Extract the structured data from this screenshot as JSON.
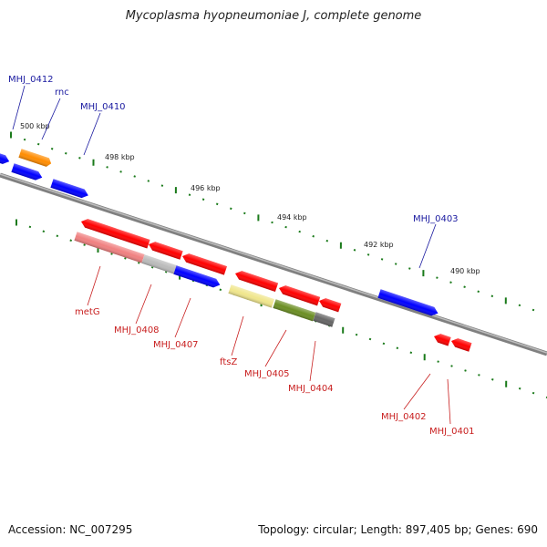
{
  "title": "Mycoplasma hyopneumoniae J, complete genome",
  "footer": {
    "accession": "Accession: NC_007295",
    "summary": "Topology: circular; Length: 897,405 bp; Genes: 690"
  },
  "colors": {
    "backbone": "#808080",
    "tick": "#1a7a1a",
    "label_forward": "#1a1aa0",
    "label_reverse": "#c81e1e",
    "red": "#ff0000",
    "blue": "#0000ff",
    "orange": "#ff8c00",
    "salmon": "#f08080",
    "lightgray": "#bbbbbb",
    "khaki": "#f0e68c",
    "olive": "#6b8e23",
    "darkgray": "#666666"
  },
  "scale_labels": [
    "500 kbp",
    "498 kbp",
    "496 kbp",
    "494 kbp",
    "492 kbp",
    "490 kbp"
  ],
  "features": [
    {
      "id": "f1",
      "color": "blue"
    },
    {
      "id": "MHJ_0412",
      "label": "MHJ_0412",
      "color": "blue",
      "strand": "forward"
    },
    {
      "id": "rnc",
      "label": "rnc",
      "color": "orange",
      "strand": "forward"
    },
    {
      "id": "MHJ_0410",
      "label": "MHJ_0410",
      "color": "blue",
      "strand": "forward"
    },
    {
      "id": "f5",
      "color": "red",
      "strand": "reverse"
    },
    {
      "id": "f6",
      "color": "red",
      "strand": "reverse"
    },
    {
      "id": "f7",
      "color": "red",
      "strand": "reverse"
    },
    {
      "id": "metG",
      "label": "metG",
      "color": "salmon",
      "strand": "reverse"
    },
    {
      "id": "MHJ_0408",
      "label": "MHJ_0408",
      "color": "lightgray",
      "strand": "reverse"
    },
    {
      "id": "MHJ_0407",
      "label": "MHJ_0407",
      "color": "blue",
      "strand": "reverse"
    },
    {
      "id": "f11",
      "color": "red",
      "strand": "reverse"
    },
    {
      "id": "f12",
      "color": "red",
      "strand": "reverse"
    },
    {
      "id": "f13",
      "color": "red",
      "strand": "reverse"
    },
    {
      "id": "ftsZ",
      "label": "ftsZ",
      "color": "khaki",
      "strand": "reverse"
    },
    {
      "id": "MHJ_0405",
      "label": "MHJ_0405",
      "color": "olive",
      "strand": "reverse"
    },
    {
      "id": "MHJ_0404",
      "label": "MHJ_0404",
      "color": "darkgray",
      "strand": "reverse"
    },
    {
      "id": "MHJ_0403",
      "label": "MHJ_0403",
      "color": "blue",
      "strand": "forward"
    },
    {
      "id": "MHJ_0402",
      "label": "MHJ_0402",
      "color": "red",
      "strand": "reverse"
    },
    {
      "id": "MHJ_0401",
      "label": "MHJ_0401",
      "color": "red",
      "strand": "reverse"
    }
  ]
}
